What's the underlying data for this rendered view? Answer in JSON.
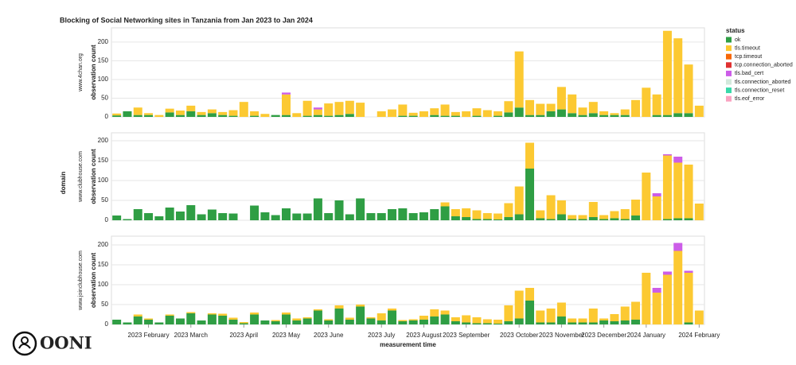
{
  "title": "Blocking of Social Networking sites in Tanzania from Jan 2023 to Jan 2024",
  "ylabel": "domain",
  "logo": "OONI",
  "legend": {
    "title": "status",
    "items": [
      {
        "name": "ok",
        "color": "#2f9e44"
      },
      {
        "name": "tls.timeout",
        "color": "#fcc932"
      },
      {
        "name": "tcp.timeout",
        "color": "#f76707"
      },
      {
        "name": "tcp.connection_aborted",
        "color": "#e03131"
      },
      {
        "name": "tls.bad_cert",
        "color": "#cc5de8"
      },
      {
        "name": "tls.connection_aborted",
        "color": "#d3e9dc"
      },
      {
        "name": "tls.connection_reset",
        "color": "#38d9a9"
      },
      {
        "name": "tls.eof_error",
        "color": "#faa2c1"
      }
    ]
  },
  "chart_data": [
    {
      "type": "bar",
      "facet": "www.4chan.org",
      "ylabel": "observation count",
      "ylim": [
        0,
        238
      ],
      "yticks": [
        0,
        50,
        100,
        150,
        200
      ],
      "series": [
        {
          "name": "ok",
          "color": "#2f9e44",
          "values": [
            4,
            15,
            5,
            5,
            0,
            12,
            5,
            15,
            5,
            10,
            5,
            3,
            0,
            3,
            0,
            5,
            5,
            0,
            3,
            5,
            3,
            5,
            8,
            0,
            0,
            0,
            0,
            3,
            3,
            0,
            5,
            3,
            3,
            0,
            3,
            0,
            3,
            12,
            25,
            5,
            5,
            15,
            20,
            10,
            5,
            10,
            5,
            5,
            5,
            0,
            0,
            5,
            5,
            10,
            10,
            0
          ]
        },
        {
          "name": "tls.timeout",
          "color": "#fcc932",
          "values": [
            5,
            0,
            20,
            5,
            5,
            10,
            12,
            15,
            8,
            10,
            8,
            15,
            40,
            12,
            8,
            0,
            55,
            10,
            40,
            15,
            33,
            35,
            35,
            38,
            0,
            15,
            20,
            30,
            8,
            15,
            18,
            30,
            10,
            15,
            20,
            18,
            12,
            30,
            150,
            40,
            30,
            20,
            60,
            50,
            20,
            30,
            10,
            5,
            15,
            45,
            78,
            55,
            225,
            200,
            130,
            30
          ]
        },
        {
          "name": "tls.bad_cert",
          "color": "#cc5de8",
          "values": [
            0,
            0,
            0,
            0,
            0,
            0,
            0,
            0,
            0,
            0,
            0,
            0,
            0,
            0,
            0,
            0,
            5,
            0,
            0,
            5,
            0,
            0,
            0,
            0,
            0,
            0,
            0,
            0,
            0,
            0,
            0,
            0,
            0,
            0,
            0,
            0,
            0,
            0,
            0,
            0,
            0,
            0,
            0,
            0,
            0,
            0,
            0,
            0,
            0,
            0,
            0,
            0,
            0,
            0,
            0,
            0
          ]
        }
      ]
    },
    {
      "type": "bar",
      "facet": "www.clubhouse.com",
      "ylabel": "observation count",
      "ylim": [
        0,
        220
      ],
      "yticks": [
        0,
        50,
        100,
        150,
        200
      ],
      "series": [
        {
          "name": "ok",
          "color": "#2f9e44",
          "values": [
            12,
            3,
            28,
            18,
            10,
            32,
            22,
            38,
            15,
            27,
            18,
            17,
            0,
            37,
            20,
            13,
            30,
            17,
            17,
            55,
            18,
            50,
            15,
            55,
            18,
            18,
            28,
            30,
            18,
            20,
            28,
            35,
            10,
            8,
            3,
            3,
            2,
            8,
            15,
            130,
            5,
            3,
            15,
            3,
            3,
            8,
            3,
            5,
            3,
            12,
            0,
            0,
            3,
            5,
            5,
            0
          ]
        },
        {
          "name": "tls.timeout",
          "color": "#fcc932",
          "values": [
            0,
            0,
            0,
            0,
            0,
            0,
            0,
            0,
            0,
            0,
            0,
            0,
            0,
            0,
            0,
            0,
            0,
            0,
            0,
            0,
            0,
            0,
            0,
            0,
            0,
            0,
            0,
            0,
            0,
            0,
            0,
            10,
            18,
            22,
            22,
            15,
            15,
            35,
            70,
            65,
            20,
            60,
            35,
            10,
            10,
            38,
            10,
            18,
            25,
            40,
            120,
            60,
            160,
            140,
            135,
            42
          ]
        },
        {
          "name": "tls.bad_cert",
          "color": "#cc5de8",
          "values": [
            0,
            0,
            0,
            0,
            0,
            0,
            0,
            0,
            0,
            0,
            0,
            0,
            0,
            0,
            0,
            0,
            0,
            0,
            0,
            0,
            0,
            0,
            0,
            0,
            0,
            0,
            0,
            0,
            0,
            0,
            0,
            0,
            0,
            0,
            0,
            0,
            0,
            0,
            0,
            0,
            0,
            0,
            0,
            0,
            0,
            0,
            0,
            0,
            0,
            0,
            0,
            8,
            3,
            15,
            0,
            0
          ]
        }
      ]
    },
    {
      "type": "bar",
      "facet": "www.joinclubhouse.com",
      "ylabel": "observation count",
      "xlabel": "measurement time",
      "ylim": [
        0,
        222
      ],
      "yticks": [
        0,
        50,
        100,
        150,
        200
      ],
      "categories": [
        null,
        null,
        null,
        "2023 February",
        null,
        null,
        null,
        "2023 March",
        null,
        null,
        null,
        null,
        "2023 April",
        null,
        null,
        null,
        "2023 May",
        null,
        null,
        null,
        "2023 June",
        null,
        null,
        null,
        null,
        "2023 July",
        null,
        null,
        null,
        "2023 August",
        null,
        null,
        null,
        "2023 September",
        null,
        null,
        null,
        null,
        "2023 October",
        null,
        null,
        null,
        "2023 November",
        null,
        null,
        null,
        "2023 December",
        null,
        null,
        null,
        "2024 January",
        null,
        null,
        null,
        null,
        "2024 February"
      ],
      "series": [
        {
          "name": "ok",
          "color": "#2f9e44",
          "values": [
            12,
            5,
            20,
            12,
            5,
            22,
            15,
            28,
            10,
            25,
            22,
            12,
            3,
            25,
            10,
            8,
            25,
            10,
            15,
            35,
            10,
            40,
            12,
            45,
            15,
            10,
            35,
            8,
            10,
            12,
            20,
            25,
            8,
            5,
            3,
            3,
            2,
            8,
            15,
            60,
            5,
            5,
            20,
            5,
            5,
            5,
            10,
            8,
            10,
            12,
            0,
            0,
            0,
            0,
            5,
            0
          ]
        },
        {
          "name": "tls.timeout",
          "color": "#fcc932",
          "values": [
            0,
            0,
            5,
            3,
            0,
            3,
            0,
            3,
            0,
            3,
            5,
            5,
            3,
            5,
            0,
            3,
            5,
            5,
            3,
            3,
            3,
            8,
            5,
            5,
            3,
            18,
            5,
            3,
            3,
            10,
            18,
            10,
            10,
            18,
            15,
            10,
            10,
            40,
            70,
            32,
            30,
            35,
            35,
            10,
            10,
            35,
            5,
            18,
            35,
            45,
            130,
            80,
            125,
            185,
            125,
            35
          ]
        },
        {
          "name": "tls.bad_cert",
          "color": "#cc5de8",
          "values": [
            0,
            0,
            0,
            0,
            0,
            0,
            0,
            0,
            0,
            0,
            0,
            0,
            0,
            0,
            0,
            0,
            0,
            0,
            0,
            0,
            0,
            0,
            0,
            0,
            0,
            0,
            0,
            0,
            0,
            0,
            0,
            0,
            0,
            0,
            0,
            0,
            0,
            0,
            0,
            0,
            0,
            0,
            0,
            0,
            0,
            0,
            0,
            0,
            0,
            0,
            0,
            12,
            8,
            20,
            5,
            0
          ]
        }
      ]
    }
  ]
}
